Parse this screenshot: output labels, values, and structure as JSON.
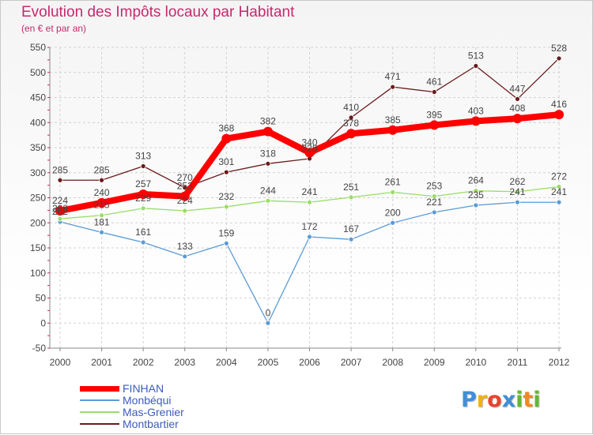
{
  "chart_data": {
    "type": "line",
    "title": "Evolution des Impôts locaux par Habitant",
    "subtitle": "(en € et par an)",
    "x": [
      "2000",
      "2001",
      "2002",
      "2003",
      "2004",
      "2005",
      "2006",
      "2007",
      "2008",
      "2009",
      "2010",
      "2011",
      "2012"
    ],
    "ylim": [
      -50,
      550
    ],
    "yticks": [
      -50,
      0,
      50,
      100,
      150,
      200,
      250,
      300,
      350,
      400,
      450,
      500,
      550
    ],
    "grid": true,
    "legend_position": "bottom-left",
    "series": [
      {
        "name": "FINHAN",
        "color": "#ff0000",
        "values": [
          224,
          240,
          257,
          253,
          368,
          382,
          340,
          378,
          385,
          395,
          403,
          408,
          416
        ]
      },
      {
        "name": "Monbéqui",
        "color": "#5b9bd5",
        "values": [
          202,
          181,
          161,
          133,
          159,
          0,
          172,
          167,
          200,
          221,
          235,
          241,
          241
        ]
      },
      {
        "name": "Mas-Grenier",
        "color": "#99dd66",
        "values": [
          208,
          215,
          229,
          224,
          232,
          244,
          241,
          251,
          261,
          253,
          264,
          262,
          272
        ]
      },
      {
        "name": "Montbartier",
        "color": "#6b1a1a",
        "values": [
          285,
          285,
          313,
          270,
          301,
          318,
          328,
          410,
          471,
          461,
          513,
          447,
          528
        ]
      }
    ]
  },
  "logo": {
    "letters": [
      {
        "char": "P",
        "color": "#3f8fd8"
      },
      {
        "char": "r",
        "color": "#f0b400"
      },
      {
        "char": "o",
        "color": "#e8432e"
      },
      {
        "char": "x",
        "color": "#3f8fd8"
      },
      {
        "char": "i",
        "color": "#62b832"
      },
      {
        "char": "t",
        "color": "#f08a1a"
      },
      {
        "char": "i",
        "color": "#62b832"
      }
    ]
  }
}
